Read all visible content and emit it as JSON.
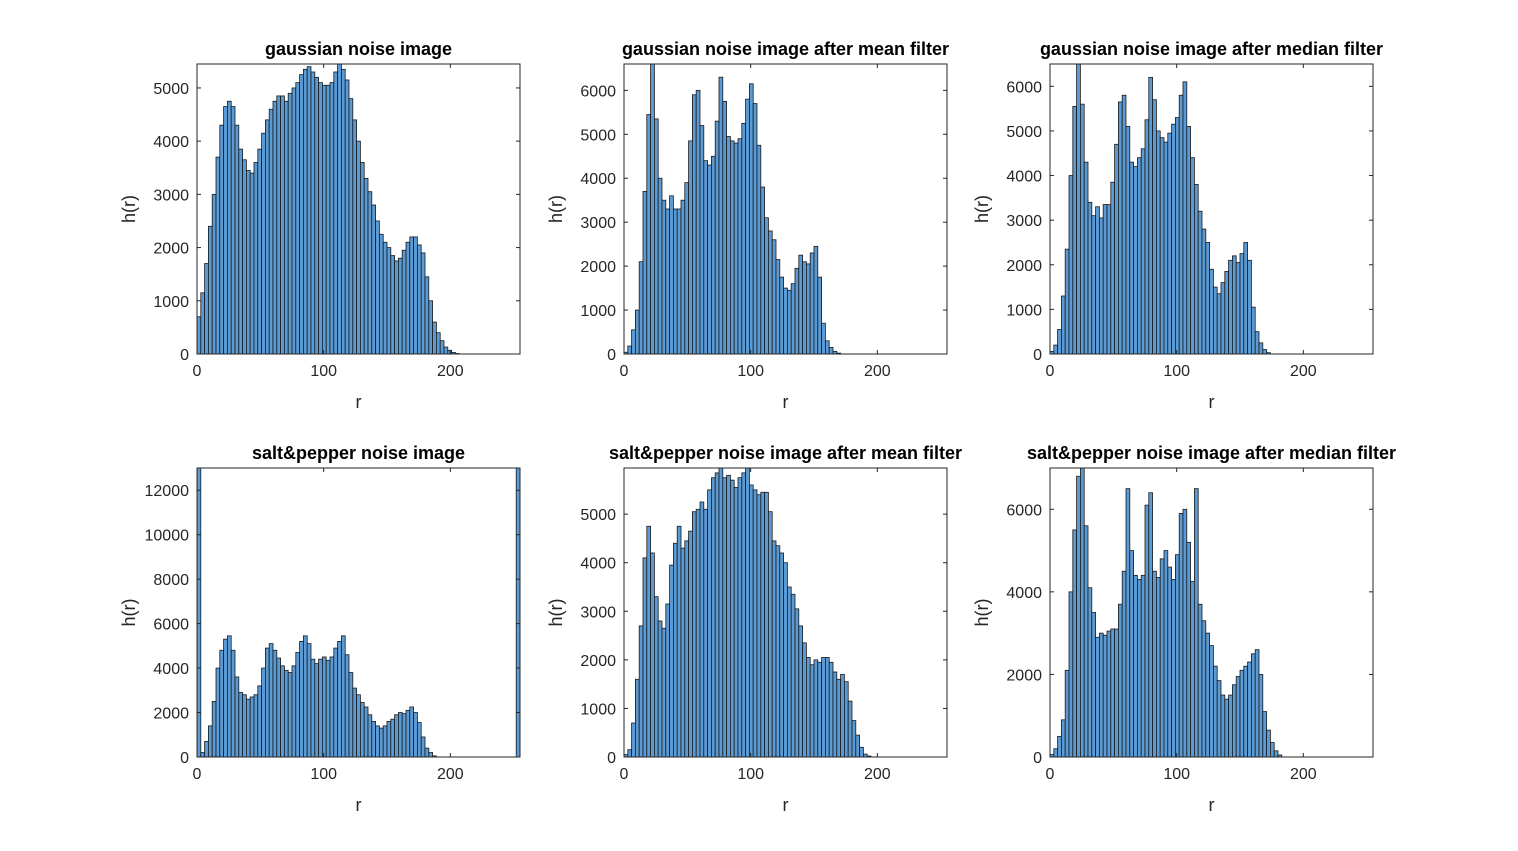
{
  "figure": {
    "background": "#ffffff",
    "bar_color": "#5b9bd5",
    "edge_color": "#1a1a1a"
  },
  "chart_data": [
    {
      "type": "bar",
      "title": "gaussian noise image",
      "xlabel": "r",
      "ylabel": "h(r)",
      "xlim": [
        0,
        255
      ],
      "ylim": [
        0,
        5450
      ],
      "xticks": [
        0,
        100,
        200
      ],
      "yticks": [
        0,
        1000,
        2000,
        3000,
        4000,
        5000
      ],
      "bin_width": 3,
      "x": [
        0,
        3,
        6,
        9,
        12,
        15,
        18,
        21,
        24,
        27,
        30,
        33,
        36,
        39,
        42,
        45,
        48,
        51,
        54,
        57,
        60,
        63,
        66,
        69,
        72,
        75,
        78,
        81,
        84,
        87,
        90,
        93,
        96,
        99,
        102,
        105,
        108,
        111,
        114,
        117,
        120,
        123,
        126,
        129,
        132,
        135,
        138,
        141,
        144,
        147,
        150,
        153,
        156,
        159,
        162,
        165,
        168,
        171,
        174,
        177,
        180,
        183,
        186,
        189,
        192,
        195,
        198,
        201,
        204,
        207,
        210,
        213,
        216,
        219,
        222,
        225,
        228,
        231,
        234,
        237,
        240,
        243,
        246,
        249,
        252
      ],
      "values": [
        700,
        1150,
        1700,
        2400,
        3000,
        3700,
        4300,
        4650,
        4750,
        4650,
        4300,
        3850,
        3650,
        3450,
        3400,
        3600,
        3850,
        4150,
        4400,
        4600,
        4750,
        4850,
        4850,
        4750,
        4900,
        5000,
        5100,
        5250,
        5350,
        5400,
        5300,
        5200,
        5100,
        5050,
        5050,
        5100,
        5300,
        5450,
        5350,
        5150,
        4800,
        4400,
        4000,
        3600,
        3300,
        3050,
        2800,
        2500,
        2250,
        2100,
        2000,
        1850,
        1750,
        1800,
        1950,
        2100,
        2200,
        2200,
        2050,
        1900,
        1450,
        1000,
        600,
        400,
        250,
        130,
        70,
        30,
        10,
        0,
        0,
        0,
        0,
        0,
        0,
        0,
        0,
        0,
        0,
        0,
        0,
        0,
        0,
        0,
        0
      ]
    },
    {
      "type": "bar",
      "title": "gaussian noise image after mean filter",
      "xlabel": "r",
      "ylabel": "h(r)",
      "xlim": [
        0,
        255
      ],
      "ylim": [
        0,
        6600
      ],
      "xticks": [
        0,
        100,
        200
      ],
      "yticks": [
        0,
        1000,
        2000,
        3000,
        4000,
        5000,
        6000
      ],
      "bin_width": 3,
      "x": [
        0,
        3,
        6,
        9,
        12,
        15,
        18,
        21,
        24,
        27,
        30,
        33,
        36,
        39,
        42,
        45,
        48,
        51,
        54,
        57,
        60,
        63,
        66,
        69,
        72,
        75,
        78,
        81,
        84,
        87,
        90,
        93,
        96,
        99,
        102,
        105,
        108,
        111,
        114,
        117,
        120,
        123,
        126,
        129,
        132,
        135,
        138,
        141,
        144,
        147,
        150,
        153,
        156,
        159,
        162,
        165,
        168,
        171,
        174,
        177,
        180,
        183,
        186,
        189,
        192,
        195,
        198,
        201,
        204,
        207,
        210,
        213,
        216,
        219,
        222,
        225,
        228,
        231,
        234,
        237,
        240,
        243,
        246,
        249,
        252
      ],
      "values": [
        40,
        180,
        550,
        1000,
        2100,
        3700,
        5450,
        6600,
        5350,
        4000,
        3500,
        3300,
        3600,
        3300,
        3300,
        3500,
        3900,
        4850,
        5900,
        6000,
        5200,
        4400,
        4300,
        4500,
        5300,
        6300,
        5750,
        4950,
        4850,
        4800,
        4900,
        5250,
        5800,
        6150,
        5700,
        4750,
        3800,
        3100,
        2800,
        2600,
        2150,
        1750,
        1500,
        1450,
        1600,
        1950,
        2250,
        2100,
        2050,
        2300,
        2450,
        1750,
        700,
        300,
        150,
        60,
        20,
        0,
        0,
        0,
        0,
        0,
        0,
        0,
        0,
        0,
        0,
        0,
        0,
        0,
        0,
        0,
        0,
        0,
        0,
        0,
        0,
        0,
        0,
        0,
        0,
        0,
        0,
        0,
        0
      ]
    },
    {
      "type": "bar",
      "title": "gaussian noise image after median filter",
      "xlabel": "r",
      "ylabel": "h(r)",
      "xlim": [
        0,
        255
      ],
      "ylim": [
        0,
        6500
      ],
      "xticks": [
        0,
        100,
        200
      ],
      "yticks": [
        0,
        1000,
        2000,
        3000,
        4000,
        5000,
        6000
      ],
      "bin_width": 3,
      "x": [
        0,
        3,
        6,
        9,
        12,
        15,
        18,
        21,
        24,
        27,
        30,
        33,
        36,
        39,
        42,
        45,
        48,
        51,
        54,
        57,
        60,
        63,
        66,
        69,
        72,
        75,
        78,
        81,
        84,
        87,
        90,
        93,
        96,
        99,
        102,
        105,
        108,
        111,
        114,
        117,
        120,
        123,
        126,
        129,
        132,
        135,
        138,
        141,
        144,
        147,
        150,
        153,
        156,
        159,
        162,
        165,
        168,
        171,
        174,
        177,
        180,
        183,
        186,
        189,
        192,
        195,
        198,
        201,
        204,
        207,
        210,
        213,
        216,
        219,
        222,
        225,
        228,
        231,
        234,
        237,
        240,
        243,
        246,
        249,
        252
      ],
      "values": [
        60,
        200,
        550,
        1300,
        2350,
        4000,
        5550,
        6500,
        5600,
        4300,
        3400,
        3100,
        3300,
        3050,
        3350,
        3350,
        3850,
        4700,
        5650,
        5800,
        5100,
        4300,
        4200,
        4400,
        4600,
        5250,
        6200,
        5700,
        5000,
        4850,
        4750,
        4950,
        5150,
        5300,
        5800,
        6100,
        5100,
        4400,
        3800,
        3200,
        2800,
        2500,
        1900,
        1500,
        1350,
        1600,
        1850,
        2100,
        2200,
        2050,
        2250,
        2500,
        2100,
        1050,
        500,
        250,
        100,
        30,
        0,
        0,
        0,
        0,
        0,
        0,
        0,
        0,
        0,
        0,
        0,
        0,
        0,
        0,
        0,
        0,
        0,
        0,
        0,
        0,
        0,
        0,
        0,
        0,
        0,
        0,
        0
      ]
    },
    {
      "type": "bar",
      "title": "salt&pepper noise image",
      "xlabel": "r",
      "ylabel": "h(r)",
      "xlim": [
        0,
        255
      ],
      "ylim": [
        0,
        13000
      ],
      "xticks": [
        0,
        100,
        200
      ],
      "yticks": [
        0,
        2000,
        4000,
        6000,
        8000,
        10000,
        12000
      ],
      "bin_width": 3,
      "x": [
        0,
        3,
        6,
        9,
        12,
        15,
        18,
        21,
        24,
        27,
        30,
        33,
        36,
        39,
        42,
        45,
        48,
        51,
        54,
        57,
        60,
        63,
        66,
        69,
        72,
        75,
        78,
        81,
        84,
        87,
        90,
        93,
        96,
        99,
        102,
        105,
        108,
        111,
        114,
        117,
        120,
        123,
        126,
        129,
        132,
        135,
        138,
        141,
        144,
        147,
        150,
        153,
        156,
        159,
        162,
        165,
        168,
        171,
        174,
        177,
        180,
        183,
        186,
        189,
        192,
        195,
        198,
        201,
        204,
        207,
        210,
        213,
        216,
        219,
        222,
        225,
        228,
        231,
        234,
        237,
        240,
        243,
        246,
        249,
        252
      ],
      "values": [
        13000,
        200,
        700,
        1400,
        2500,
        4000,
        4800,
        5300,
        5450,
        4800,
        3600,
        2900,
        2800,
        2600,
        2700,
        2800,
        3200,
        4000,
        4900,
        5100,
        4800,
        4450,
        4100,
        3900,
        3800,
        4100,
        4700,
        5200,
        5450,
        5100,
        4400,
        4200,
        4400,
        4500,
        4350,
        4500,
        4900,
        5200,
        5450,
        4600,
        3800,
        3100,
        2800,
        2450,
        2250,
        1900,
        1600,
        1400,
        1300,
        1400,
        1600,
        1700,
        1900,
        2000,
        1950,
        2100,
        2250,
        2000,
        1550,
        900,
        400,
        200,
        50,
        0,
        0,
        0,
        0,
        0,
        0,
        0,
        0,
        0,
        0,
        0,
        0,
        0,
        0,
        0,
        0,
        0,
        0,
        0,
        0,
        0,
        13000
      ]
    },
    {
      "type": "bar",
      "title": "salt&pepper noise image after mean filter",
      "xlabel": "r",
      "ylabel": "h(r)",
      "xlim": [
        0,
        255
      ],
      "ylim": [
        0,
        5950
      ],
      "xticks": [
        0,
        100,
        200
      ],
      "yticks": [
        0,
        1000,
        2000,
        3000,
        4000,
        5000
      ],
      "bin_width": 3,
      "x": [
        0,
        3,
        6,
        9,
        12,
        15,
        18,
        21,
        24,
        27,
        30,
        33,
        36,
        39,
        42,
        45,
        48,
        51,
        54,
        57,
        60,
        63,
        66,
        69,
        72,
        75,
        78,
        81,
        84,
        87,
        90,
        93,
        96,
        99,
        102,
        105,
        108,
        111,
        114,
        117,
        120,
        123,
        126,
        129,
        132,
        135,
        138,
        141,
        144,
        147,
        150,
        153,
        156,
        159,
        162,
        165,
        168,
        171,
        174,
        177,
        180,
        183,
        186,
        189,
        192,
        195,
        198,
        201,
        204,
        207,
        210,
        213,
        216,
        219,
        222,
        225,
        228,
        231,
        234,
        237,
        240,
        243,
        246,
        249,
        252
      ],
      "values": [
        50,
        150,
        700,
        1600,
        2700,
        4100,
        4750,
        4200,
        3300,
        2800,
        2650,
        3150,
        3950,
        4400,
        4750,
        4300,
        4450,
        4650,
        5050,
        5100,
        5250,
        5100,
        5500,
        5750,
        5850,
        5950,
        5750,
        5800,
        5700,
        5550,
        5750,
        5850,
        5950,
        5600,
        5500,
        5400,
        5450,
        5450,
        5050,
        4450,
        4350,
        4200,
        4000,
        3500,
        3350,
        3050,
        2700,
        2350,
        2050,
        1900,
        2000,
        1950,
        2050,
        2050,
        1950,
        1750,
        1600,
        1700,
        1550,
        1150,
        750,
        450,
        200,
        60,
        20,
        0,
        0,
        0,
        0,
        0,
        0,
        0,
        0,
        0,
        0,
        0,
        0,
        0,
        0,
        0,
        0,
        0,
        0,
        0,
        0
      ]
    },
    {
      "type": "bar",
      "title": "salt&pepper noise image after median filter",
      "xlabel": "r",
      "ylabel": "h(r)",
      "xlim": [
        0,
        255
      ],
      "ylim": [
        0,
        7000
      ],
      "xticks": [
        0,
        100,
        200
      ],
      "yticks": [
        0,
        2000,
        4000,
        6000
      ],
      "bin_width": 3,
      "x": [
        0,
        3,
        6,
        9,
        12,
        15,
        18,
        21,
        24,
        27,
        30,
        33,
        36,
        39,
        42,
        45,
        48,
        51,
        54,
        57,
        60,
        63,
        66,
        69,
        72,
        75,
        78,
        81,
        84,
        87,
        90,
        93,
        96,
        99,
        102,
        105,
        108,
        111,
        114,
        117,
        120,
        123,
        126,
        129,
        132,
        135,
        138,
        141,
        144,
        147,
        150,
        153,
        156,
        159,
        162,
        165,
        168,
        171,
        174,
        177,
        180,
        183,
        186,
        189,
        192,
        195,
        198,
        201,
        204,
        207,
        210,
        213,
        216,
        219,
        222,
        225,
        228,
        231,
        234,
        237,
        240,
        243,
        246,
        249,
        252
      ],
      "values": [
        60,
        200,
        500,
        900,
        2100,
        4000,
        5500,
        6800,
        7000,
        5600,
        4100,
        3500,
        2900,
        3000,
        2950,
        3050,
        3100,
        3100,
        3700,
        4500,
        6500,
        5000,
        4400,
        4300,
        4400,
        6100,
        6400,
        4500,
        4350,
        4800,
        5000,
        4600,
        4300,
        4900,
        5900,
        6000,
        5200,
        4250,
        6500,
        3700,
        3300,
        3000,
        2700,
        2200,
        1850,
        1500,
        1400,
        1500,
        1750,
        1950,
        2100,
        2200,
        2300,
        2500,
        2600,
        2000,
        1100,
        650,
        350,
        150,
        50,
        0,
        0,
        0,
        0,
        0,
        0,
        0,
        0,
        0,
        0,
        0,
        0,
        0,
        0,
        0,
        0,
        0,
        0,
        0,
        0,
        0,
        0,
        0,
        0
      ]
    }
  ]
}
